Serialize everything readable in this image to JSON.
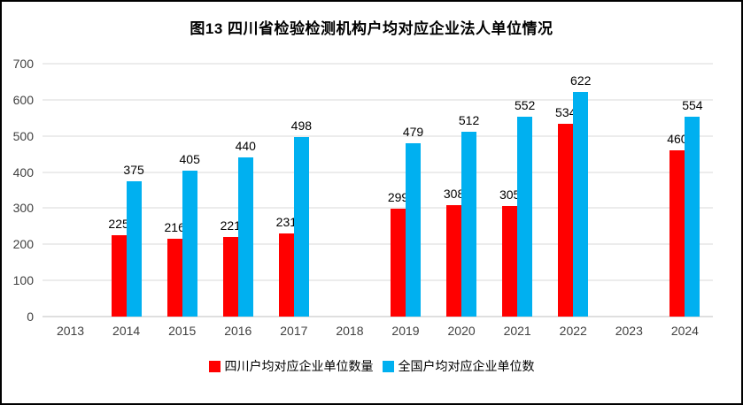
{
  "title": "图13 四川省检验检测机构户均对应企业法人单位情况",
  "chart_data": {
    "type": "bar",
    "title": "图13 四川省检验检测机构户均对应企业法人单位情况",
    "categories": [
      "2013",
      "2014",
      "2015",
      "2016",
      "2017",
      "2018",
      "2019",
      "2020",
      "2021",
      "2022",
      "2023",
      "2024"
    ],
    "series": [
      {
        "name": "四川户均对应企业单位数量",
        "color": "#ff0000",
        "values": [
          null,
          225,
          216,
          221,
          231,
          null,
          299,
          308,
          305,
          534,
          null,
          460
        ]
      },
      {
        "name": "全国户均对应企业单位数",
        "color": "#00b0f0",
        "values": [
          null,
          375,
          405,
          440,
          498,
          null,
          479,
          512,
          552,
          622,
          null,
          554
        ]
      }
    ],
    "xlabel": "",
    "ylabel": "",
    "ylim": [
      0,
      700
    ],
    "ytick_interval": 100,
    "grid": true,
    "legend_position": "bottom"
  }
}
